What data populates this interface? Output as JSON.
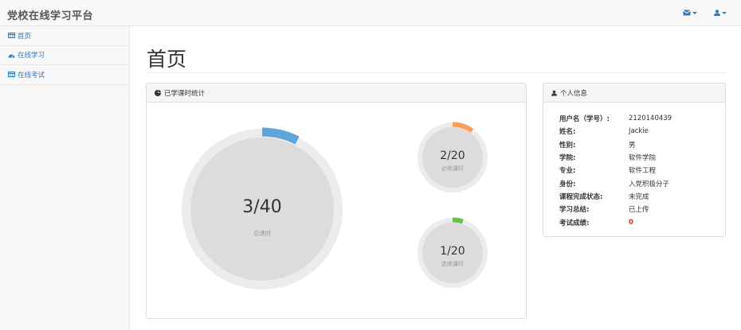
{
  "navbar": {
    "brand": "党校在线学习平台",
    "colors": {
      "link": "#337ab7"
    }
  },
  "sidebar": {
    "items": [
      {
        "label": "首页",
        "icon": "table-icon"
      },
      {
        "label": "在线学习",
        "icon": "dashboard-icon"
      },
      {
        "label": "在线考试",
        "icon": "table-icon"
      }
    ]
  },
  "page": {
    "title": "首页"
  },
  "stats_panel": {
    "title": "已学课时统计",
    "total": {
      "value_text": "3/40",
      "label": "总课时",
      "done": 3,
      "max": 40,
      "color": "#5da5da"
    },
    "required": {
      "value_text": "2/20",
      "label": "必修课时",
      "done": 2,
      "max": 20,
      "color": "#f99c59"
    },
    "elective": {
      "value_text": "1/20",
      "label": "选修课时",
      "done": 1,
      "max": 20,
      "color": "#6cc04a"
    }
  },
  "info_panel": {
    "title": "个人信息",
    "rows": [
      {
        "key": "用户名（学号）:",
        "value": "2120140439"
      },
      {
        "key": "姓名:",
        "value": "Jackie"
      },
      {
        "key": "性别:",
        "value": "男"
      },
      {
        "key": "学院:",
        "value": "软件学院"
      },
      {
        "key": "专业:",
        "value": "软件工程"
      },
      {
        "key": "身份:",
        "value": "入党积极分子"
      },
      {
        "key": "课程完成状态:",
        "value": "未完成"
      },
      {
        "key": "学习总结:",
        "value": "已上传"
      },
      {
        "key": "考试成绩:",
        "value": "0"
      }
    ],
    "score_color": "#c9302c"
  }
}
